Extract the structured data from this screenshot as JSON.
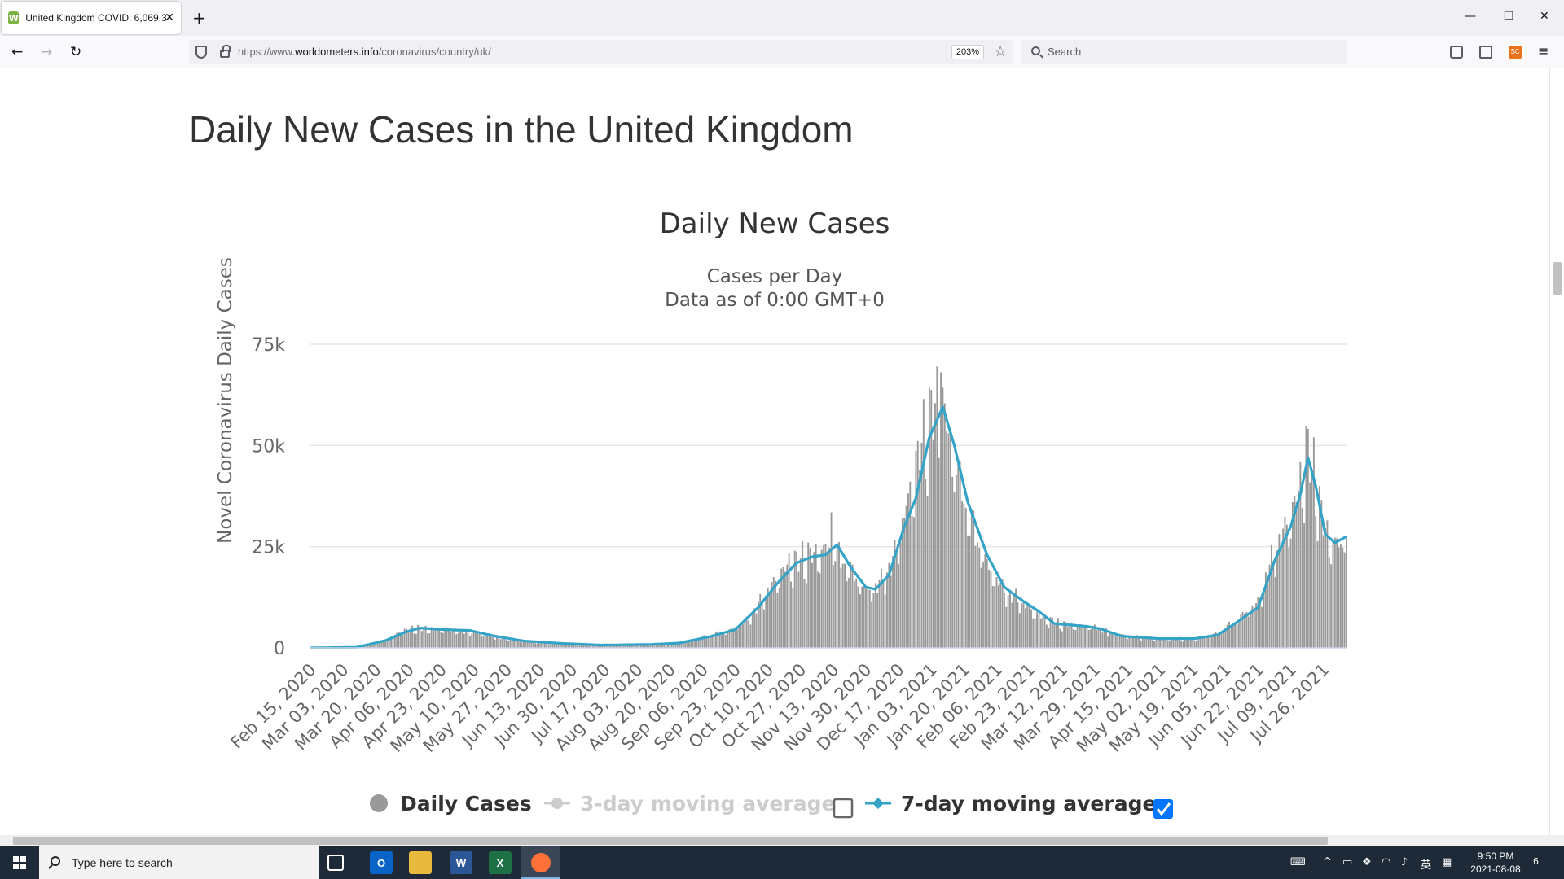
{
  "browser": {
    "tab_title": "United Kingdom COVID: 6,069,3",
    "favicon": "W",
    "url_prefix": "https://www.",
    "url_domain": "worldometers.info",
    "url_path": "/coronavirus/country/uk/",
    "zoom": "203%",
    "search_placeholder": "Search"
  },
  "page": {
    "heading": "Daily New Cases in the United Kingdom"
  },
  "chart_data": {
    "type": "bar",
    "title": "Daily New Cases",
    "subtitle": [
      "Cases per Day",
      "Data as of 0:00 GMT+0"
    ],
    "ylabel": "Novel Coronavirus Daily Cases",
    "xlabel": "",
    "ylim": [
      0,
      75000
    ],
    "yticks": [
      0,
      25000,
      50000,
      75000
    ],
    "ytick_labels": [
      "0",
      "25k",
      "50k",
      "75k"
    ],
    "grid": true,
    "legend_position": "bottom",
    "x_tick_labels": [
      "Feb 15, 2020",
      "Mar 03, 2020",
      "Mar 20, 2020",
      "Apr 06, 2020",
      "Apr 23, 2020",
      "May 10, 2020",
      "May 27, 2020",
      "Jun 13, 2020",
      "Jun 30, 2020",
      "Jul 17, 2020",
      "Aug 03, 2020",
      "Aug 20, 2020",
      "Sep 06, 2020",
      "Sep 23, 2020",
      "Oct 10, 2020",
      "Oct 27, 2020",
      "Nov 13, 2020",
      "Nov 30, 2020",
      "Dec 17, 2020",
      "Jan 03, 2021",
      "Jan 20, 2021",
      "Feb 06, 2021",
      "Feb 23, 2021",
      "Mar 12, 2021",
      "Mar 29, 2021",
      "Apr 15, 2021",
      "May 02, 2021",
      "May 19, 2021",
      "Jun 05, 2021",
      "Jun 22, 2021",
      "Jul 09, 2021",
      "Jul 26, 2021"
    ],
    "series": [
      {
        "name": "Daily Cases",
        "kind": "bar",
        "color": "#999999",
        "x_start": "2020-02-15",
        "x_end": "2021-08-07",
        "keyframes": [
          [
            "2020-02-15",
            0
          ],
          [
            "2020-03-05",
            50
          ],
          [
            "2020-03-15",
            400
          ],
          [
            "2020-03-25",
            1800
          ],
          [
            "2020-04-02",
            4000
          ],
          [
            "2020-04-10",
            4800
          ],
          [
            "2020-04-20",
            4600
          ],
          [
            "2020-05-01",
            4200
          ],
          [
            "2020-05-10",
            3600
          ],
          [
            "2020-05-20",
            2800
          ],
          [
            "2020-06-01",
            1800
          ],
          [
            "2020-06-15",
            1300
          ],
          [
            "2020-07-01",
            850
          ],
          [
            "2020-07-20",
            650
          ],
          [
            "2020-08-10",
            900
          ],
          [
            "2020-08-25",
            1200
          ],
          [
            "2020-09-07",
            2800
          ],
          [
            "2020-09-20",
            4200
          ],
          [
            "2020-09-30",
            7000
          ],
          [
            "2020-10-10",
            14000
          ],
          [
            "2020-10-20",
            20000
          ],
          [
            "2020-10-31",
            22500
          ],
          [
            "2020-11-06",
            23000
          ],
          [
            "2020-11-12",
            25000
          ],
          [
            "2020-11-20",
            20000
          ],
          [
            "2020-11-30",
            14000
          ],
          [
            "2020-12-06",
            15000
          ],
          [
            "2020-12-14",
            21000
          ],
          [
            "2020-12-22",
            36000
          ],
          [
            "2020-12-29",
            50000
          ],
          [
            "2021-01-04",
            58000
          ],
          [
            "2021-01-08",
            60000
          ],
          [
            "2021-01-14",
            48000
          ],
          [
            "2021-01-22",
            33000
          ],
          [
            "2021-02-01",
            20000
          ],
          [
            "2021-02-10",
            14000
          ],
          [
            "2021-02-20",
            11000
          ],
          [
            "2021-03-01",
            7500
          ],
          [
            "2021-03-12",
            5800
          ],
          [
            "2021-03-25",
            5300
          ],
          [
            "2021-04-05",
            4200
          ],
          [
            "2021-04-15",
            2800
          ],
          [
            "2021-05-01",
            2300
          ],
          [
            "2021-05-19",
            2200
          ],
          [
            "2021-06-01",
            3500
          ],
          [
            "2021-06-10",
            6500
          ],
          [
            "2021-06-22",
            11000
          ],
          [
            "2021-07-01",
            24000
          ],
          [
            "2021-07-09",
            32000
          ],
          [
            "2021-07-14",
            40000
          ],
          [
            "2021-07-18",
            47000
          ],
          [
            "2021-07-21",
            43000
          ],
          [
            "2021-07-26",
            30000
          ],
          [
            "2021-07-30",
            26000
          ],
          [
            "2021-08-03",
            25000
          ],
          [
            "2021-08-07",
            28000
          ]
        ],
        "noted_values": [
          [
            "2020-11-12",
            33470
          ],
          [
            "2021-01-08",
            68053
          ],
          [
            "2021-07-17",
            54674
          ],
          [
            "2021-04-05",
            2762
          ],
          [
            "2021-08-07",
            27000
          ]
        ]
      },
      {
        "name": "3-day moving average",
        "kind": "line",
        "color": "#cccccc",
        "visible": false
      },
      {
        "name": "7-day moving average",
        "kind": "line",
        "color": "#33a3c7",
        "visible": true,
        "keyframes": [
          [
            "2020-02-15",
            0
          ],
          [
            "2020-03-10",
            150
          ],
          [
            "2020-03-25",
            1800
          ],
          [
            "2020-04-05",
            4000
          ],
          [
            "2020-04-12",
            4900
          ],
          [
            "2020-04-25",
            4500
          ],
          [
            "2020-05-08",
            4300
          ],
          [
            "2020-05-20",
            3000
          ],
          [
            "2020-06-05",
            1700
          ],
          [
            "2020-06-25",
            1100
          ],
          [
            "2020-07-15",
            700
          ],
          [
            "2020-08-10",
            850
          ],
          [
            "2020-08-25",
            1200
          ],
          [
            "2020-09-10",
            2800
          ],
          [
            "2020-09-23",
            4500
          ],
          [
            "2020-10-05",
            10000
          ],
          [
            "2020-10-15",
            16000
          ],
          [
            "2020-10-25",
            21000
          ],
          [
            "2020-11-02",
            22500
          ],
          [
            "2020-11-09",
            23000
          ],
          [
            "2020-11-15",
            25500
          ],
          [
            "2020-11-22",
            20000
          ],
          [
            "2020-11-30",
            15000
          ],
          [
            "2020-12-05",
            14500
          ],
          [
            "2020-12-12",
            18000
          ],
          [
            "2020-12-20",
            30000
          ],
          [
            "2020-12-26",
            37000
          ],
          [
            "2021-01-02",
            52000
          ],
          [
            "2021-01-09",
            59500
          ],
          [
            "2021-01-15",
            50000
          ],
          [
            "2021-01-22",
            36000
          ],
          [
            "2021-02-01",
            23000
          ],
          [
            "2021-02-10",
            15000
          ],
          [
            "2021-02-20",
            11500
          ],
          [
            "2021-02-28",
            9000
          ],
          [
            "2021-03-08",
            6000
          ],
          [
            "2021-03-25",
            5300
          ],
          [
            "2021-04-01",
            4700
          ],
          [
            "2021-04-12",
            2900
          ],
          [
            "2021-05-01",
            2300
          ],
          [
            "2021-05-20",
            2300
          ],
          [
            "2021-06-01",
            3200
          ],
          [
            "2021-06-10",
            6000
          ],
          [
            "2021-06-22",
            10000
          ],
          [
            "2021-07-01",
            22000
          ],
          [
            "2021-07-09",
            30000
          ],
          [
            "2021-07-14",
            38000
          ],
          [
            "2021-07-18",
            47000
          ],
          [
            "2021-07-22",
            40000
          ],
          [
            "2021-07-27",
            28000
          ],
          [
            "2021-08-01",
            26000
          ],
          [
            "2021-08-07",
            27500
          ]
        ]
      }
    ],
    "legend": [
      {
        "label": "Daily Cases",
        "enabled": true
      },
      {
        "label": "3-day moving average",
        "enabled": false,
        "checkbox": false
      },
      {
        "label": "7-day moving average",
        "enabled": true,
        "checkbox": true
      }
    ]
  },
  "taskbar": {
    "search_placeholder": "Type here to search",
    "ime": "英",
    "time": "9:50 PM",
    "date": "2021-08-08",
    "notifications": "6"
  }
}
